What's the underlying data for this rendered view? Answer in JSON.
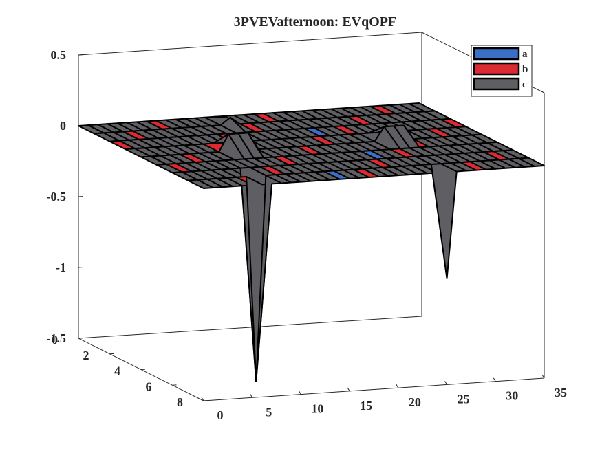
{
  "chart_data": {
    "type": "surface",
    "title": "3PVEVafternoon: EVqOPF",
    "xlabel": "",
    "ylabel": "",
    "zlabel": "",
    "x_ticks": [
      "0",
      "5",
      "10",
      "15",
      "20",
      "25",
      "30",
      "35"
    ],
    "y_ticks": [
      "0",
      "2",
      "4",
      "6",
      "8"
    ],
    "z_ticks": [
      "0.5",
      "0",
      "-0.5",
      "-1",
      "-1.5"
    ],
    "xlim": [
      0,
      35
    ],
    "ylim": [
      0,
      8
    ],
    "zlim": [
      -1.5,
      0.5
    ],
    "grid": false,
    "legend": {
      "position": "top-right",
      "entries": [
        {
          "label": "a",
          "color": "#3b6fc7"
        },
        {
          "label": "b",
          "color": "#dc2a32"
        },
        {
          "label": "c",
          "color": "#5f5f63"
        }
      ]
    },
    "series": [
      {
        "name": "a",
        "surface": "flat near 0",
        "values": [
          {
            "x": 17,
            "y": 2,
            "z": 0.0
          },
          {
            "x": 20,
            "y": 4,
            "z": 0.0
          }
        ]
      },
      {
        "name": "b",
        "surface": "flat near 0 with dip",
        "values": [
          {
            "x": 14,
            "y": 1,
            "z": 0.05
          },
          {
            "x": 7,
            "y": 7,
            "z": -0.45
          }
        ]
      },
      {
        "name": "c",
        "surface": "flat near 0 with spikes",
        "values": [
          {
            "x": 9,
            "y": 4,
            "z": 0.12
          },
          {
            "x": 10,
            "y": 4,
            "z": 0.12
          },
          {
            "x": 11,
            "y": 4,
            "z": 0.12
          },
          {
            "x": 7,
            "y": 7,
            "z": -1.45
          },
          {
            "x": 25,
            "y": 4,
            "z": 0.1
          },
          {
            "x": 26,
            "y": 4,
            "z": 0.1
          },
          {
            "x": 27,
            "y": 4,
            "z": 0.1
          },
          {
            "x": 25,
            "y": 8,
            "z": -0.75
          }
        ]
      }
    ]
  }
}
